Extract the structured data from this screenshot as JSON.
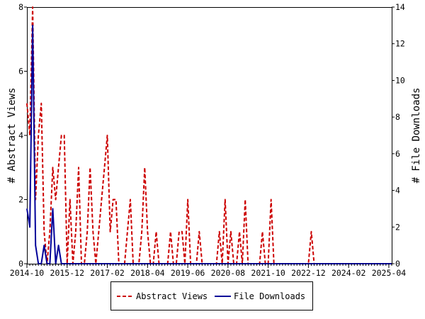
{
  "chart_data": {
    "type": "line",
    "ylabel_left": "# Abstract Views",
    "ylabel_right": "# File Downloads",
    "xlabel": "",
    "x_tick_labels": [
      "2014-10",
      "2015-12",
      "2017-02",
      "2018-04",
      "2019-06",
      "2020-08",
      "2021-10",
      "2022-12",
      "2024-02",
      "2025-04"
    ],
    "x_range": [
      "2014-10",
      "2025-05"
    ],
    "ylim_left": [
      0,
      8
    ],
    "yticks_left": [
      0,
      2,
      4,
      6,
      8
    ],
    "ylim_right": [
      0,
      14
    ],
    "yticks_right": [
      0,
      2,
      4,
      6,
      8,
      10,
      12,
      14
    ],
    "legend_position": "bottom-center",
    "grid": false,
    "series": [
      {
        "name": "Abstract Views",
        "axis": "left",
        "color": "#cc0000",
        "style": "dashed",
        "points": [
          [
            "2014-10",
            5
          ],
          [
            "2014-11",
            4
          ],
          [
            "2014-12",
            8
          ],
          [
            "2015-01",
            2
          ],
          [
            "2015-02",
            4
          ],
          [
            "2015-03",
            5
          ],
          [
            "2015-04",
            1
          ],
          [
            "2015-05",
            0
          ],
          [
            "2015-06",
            1
          ],
          [
            "2015-07",
            3
          ],
          [
            "2015-08",
            2
          ],
          [
            "2015-09",
            3
          ],
          [
            "2015-10",
            4
          ],
          [
            "2015-11",
            4
          ],
          [
            "2015-12",
            0
          ],
          [
            "2016-01",
            2
          ],
          [
            "2016-02",
            0
          ],
          [
            "2016-03",
            1
          ],
          [
            "2016-04",
            3
          ],
          [
            "2016-05",
            0
          ],
          [
            "2016-06",
            0
          ],
          [
            "2016-07",
            1
          ],
          [
            "2016-08",
            3
          ],
          [
            "2016-09",
            1
          ],
          [
            "2016-10",
            0
          ],
          [
            "2016-11",
            1
          ],
          [
            "2016-12",
            2
          ],
          [
            "2017-01",
            3
          ],
          [
            "2017-02",
            4
          ],
          [
            "2017-03",
            1
          ],
          [
            "2017-04",
            2
          ],
          [
            "2017-05",
            2
          ],
          [
            "2017-06",
            0
          ],
          [
            "2017-07",
            0
          ],
          [
            "2017-08",
            0
          ],
          [
            "2017-09",
            1
          ],
          [
            "2017-10",
            2
          ],
          [
            "2017-11",
            0
          ],
          [
            "2017-12",
            0
          ],
          [
            "2018-01",
            0
          ],
          [
            "2018-02",
            1
          ],
          [
            "2018-03",
            3
          ],
          [
            "2018-04",
            1
          ],
          [
            "2018-05",
            0
          ],
          [
            "2018-06",
            0
          ],
          [
            "2018-07",
            1
          ],
          [
            "2018-08",
            0
          ],
          [
            "2018-09",
            0
          ],
          [
            "2018-10",
            0
          ],
          [
            "2018-11",
            0
          ],
          [
            "2018-12",
            1
          ],
          [
            "2019-01",
            0
          ],
          [
            "2019-02",
            0
          ],
          [
            "2019-03",
            1
          ],
          [
            "2019-04",
            1
          ],
          [
            "2019-05",
            0
          ],
          [
            "2019-06",
            2
          ],
          [
            "2019-07",
            0
          ],
          [
            "2019-08",
            0
          ],
          [
            "2019-09",
            0
          ],
          [
            "2019-10",
            1
          ],
          [
            "2019-11",
            0
          ],
          [
            "2019-12",
            0
          ],
          [
            "2020-01",
            0
          ],
          [
            "2020-02",
            0
          ],
          [
            "2020-03",
            0
          ],
          [
            "2020-04",
            0
          ],
          [
            "2020-05",
            1
          ],
          [
            "2020-06",
            0
          ],
          [
            "2020-07",
            2
          ],
          [
            "2020-08",
            0
          ],
          [
            "2020-09",
            1
          ],
          [
            "2020-10",
            0
          ],
          [
            "2020-11",
            0
          ],
          [
            "2020-12",
            1
          ],
          [
            "2021-01",
            0
          ],
          [
            "2021-02",
            2
          ],
          [
            "2021-03",
            0
          ],
          [
            "2021-04",
            0
          ],
          [
            "2021-05",
            0
          ],
          [
            "2021-06",
            0
          ],
          [
            "2021-07",
            0
          ],
          [
            "2021-08",
            1
          ],
          [
            "2021-09",
            0
          ],
          [
            "2021-10",
            0
          ],
          [
            "2021-11",
            2
          ],
          [
            "2021-12",
            0
          ],
          [
            "2022-01",
            0
          ],
          [
            "2022-02",
            0
          ],
          [
            "2022-12",
            0
          ],
          [
            "2023-01",
            1
          ],
          [
            "2023-02",
            0
          ],
          [
            "2025-05",
            0
          ]
        ]
      },
      {
        "name": "File Downloads",
        "axis": "right",
        "color": "#000099",
        "style": "solid",
        "points": [
          [
            "2014-10",
            3
          ],
          [
            "2014-11",
            2
          ],
          [
            "2014-12",
            13
          ],
          [
            "2015-01",
            1
          ],
          [
            "2015-02",
            0
          ],
          [
            "2015-03",
            0
          ],
          [
            "2015-04",
            1
          ],
          [
            "2015-05",
            0
          ],
          [
            "2015-06",
            0
          ],
          [
            "2015-07",
            3
          ],
          [
            "2015-08",
            0
          ],
          [
            "2015-09",
            1
          ],
          [
            "2015-10",
            0
          ],
          [
            "2015-11",
            0
          ],
          [
            "2025-05",
            0
          ]
        ]
      }
    ]
  }
}
